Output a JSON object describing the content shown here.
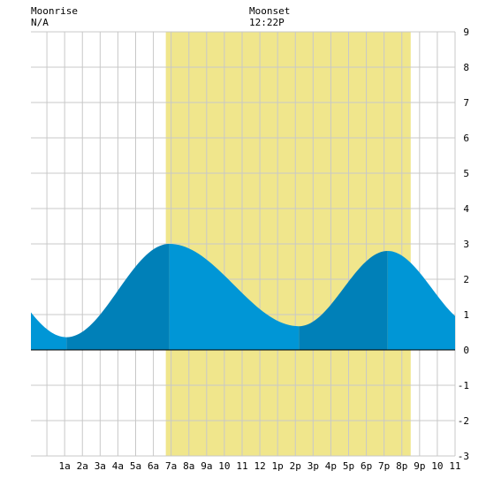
{
  "header": {
    "moonrise_label": "Moonrise",
    "moonrise_value": "N/A",
    "moonset_label": "Moonset",
    "moonset_value": "12:22P"
  },
  "colors": {
    "daylight": "#f0e68c",
    "tide_light": "#0096d6",
    "tide_dark": "#0080b8",
    "grid": "#c8c8c8",
    "zero_line": "#000000",
    "background": "#ffffff"
  },
  "chart_data": {
    "type": "area",
    "title": "",
    "xlabel": "",
    "ylabel": "",
    "xlim": [
      -0.9,
      23
    ],
    "ylim": [
      -3,
      9
    ],
    "yticks": [
      -3,
      -2,
      -1,
      0,
      1,
      2,
      3,
      4,
      5,
      6,
      7,
      8,
      9
    ],
    "xtick_labels": [
      {
        "hour": 1,
        "label": "1a"
      },
      {
        "hour": 2,
        "label": "2a"
      },
      {
        "hour": 3,
        "label": "3a"
      },
      {
        "hour": 4,
        "label": "4a"
      },
      {
        "hour": 5,
        "label": "5a"
      },
      {
        "hour": 6,
        "label": "6a"
      },
      {
        "hour": 7,
        "label": "7a"
      },
      {
        "hour": 8,
        "label": "8a"
      },
      {
        "hour": 9,
        "label": "9a"
      },
      {
        "hour": 10,
        "label": "10"
      },
      {
        "hour": 11,
        "label": "11"
      },
      {
        "hour": 12,
        "label": "12"
      },
      {
        "hour": 13,
        "label": "1p"
      },
      {
        "hour": 14,
        "label": "2p"
      },
      {
        "hour": 15,
        "label": "3p"
      },
      {
        "hour": 16,
        "label": "4p"
      },
      {
        "hour": 17,
        "label": "5p"
      },
      {
        "hour": 18,
        "label": "6p"
      },
      {
        "hour": 19,
        "label": "7p"
      },
      {
        "hour": 20,
        "label": "8p"
      },
      {
        "hour": 21,
        "label": "9p"
      },
      {
        "hour": 22,
        "label": "10"
      },
      {
        "hour": 23,
        "label": "11"
      }
    ],
    "daylight_span": [
      6.7,
      20.5
    ],
    "tide_extrema": [
      {
        "hour": 1.1,
        "height": 0.36
      },
      {
        "hour": 6.9,
        "height": 3.0
      },
      {
        "hour": 14.2,
        "height": 0.67
      },
      {
        "hour": 19.2,
        "height": 2.8
      }
    ],
    "series": [
      {
        "x": [
          -0.9,
          0,
          1,
          2,
          3,
          4,
          5,
          6,
          7,
          8,
          9,
          10,
          11,
          12,
          13,
          14,
          15,
          16,
          17,
          18,
          19,
          20,
          21,
          22,
          23
        ],
        "y": [
          0.68,
          0.52,
          0.36,
          0.45,
          0.9,
          1.55,
          2.2,
          2.75,
          3.0,
          2.88,
          2.5,
          2.0,
          1.5,
          1.1,
          0.8,
          0.67,
          0.8,
          1.35,
          2.0,
          2.55,
          2.8,
          2.7,
          2.35,
          1.85,
          1.3
        ]
      }
    ]
  }
}
